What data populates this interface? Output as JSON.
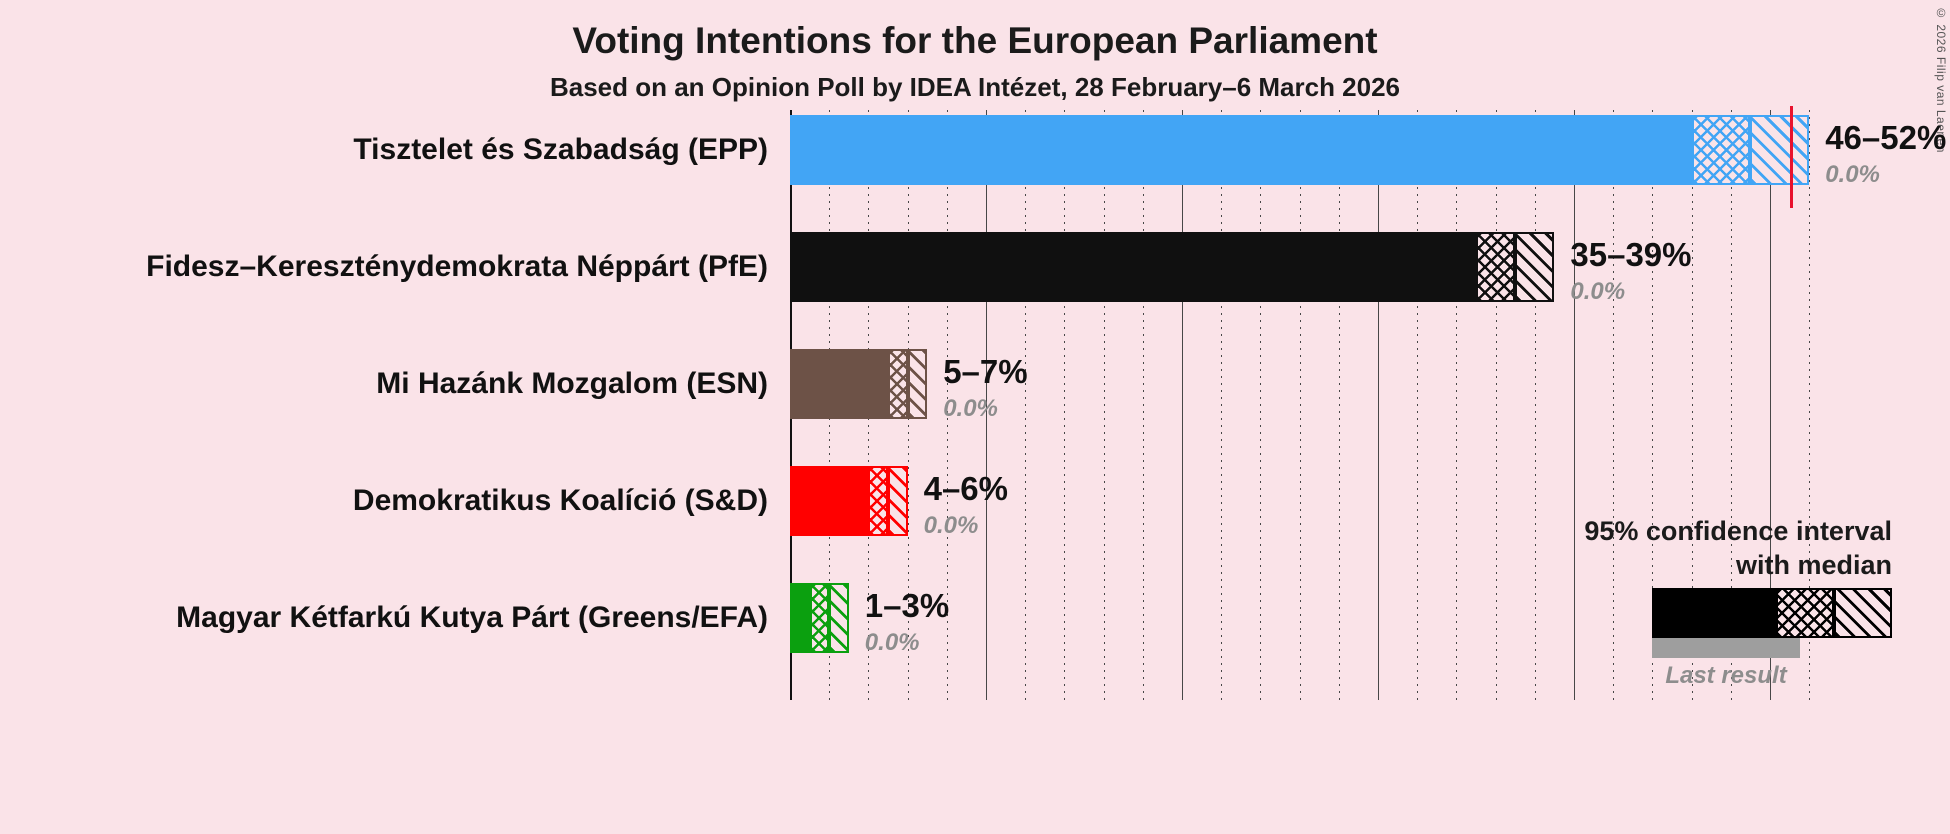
{
  "chart_data": {
    "type": "bar",
    "orientation": "horizontal",
    "title": "Voting Intentions for the European Parliament",
    "subtitle": "Based on an Opinion Poll by IDEA Intézet, 28 February–6 March 2026",
    "x_unit": "percent",
    "xlim": [
      0,
      52
    ],
    "gridlines": {
      "dotted_every_pct": 2,
      "solid_every_pct": 10
    },
    "majority_line_pct": 51,
    "parties": [
      {
        "label": "Tisztelet és Szabadság (EPP)",
        "color": "#42A5F5",
        "ci_low_pct": 46,
        "ci_median_pct": 49,
        "ci_high_pct": 52,
        "ci_label": "46–52%",
        "last_result_pct": 0.0,
        "last_result_label": "0.0%"
      },
      {
        "label": "Fidesz–Kereszténydemokrata Néppárt (PfE)",
        "color": "#101010",
        "ci_low_pct": 35,
        "ci_median_pct": 37,
        "ci_high_pct": 39,
        "ci_label": "35–39%",
        "last_result_pct": 0.0,
        "last_result_label": "0.0%"
      },
      {
        "label": "Mi Hazánk Mozgalom (ESN)",
        "color": "#6D5247",
        "ci_low_pct": 5,
        "ci_median_pct": 6,
        "ci_high_pct": 7,
        "ci_label": "5–7%",
        "last_result_pct": 0.0,
        "last_result_label": "0.0%"
      },
      {
        "label": "Demokratikus Koalíció (S&D)",
        "color": "#FF0000",
        "ci_low_pct": 4,
        "ci_median_pct": 5,
        "ci_high_pct": 6,
        "ci_label": "4–6%",
        "last_result_pct": 0.0,
        "last_result_label": "0.0%"
      },
      {
        "label": "Magyar Kétfarkú Kutya Párt (Greens/EFA)",
        "color": "#0BA00F",
        "ci_low_pct": 1,
        "ci_median_pct": 2,
        "ci_high_pct": 3,
        "ci_label": "1–3%",
        "last_result_pct": 0.0,
        "last_result_label": "0.0%"
      }
    ]
  },
  "legend": {
    "ci_line1": "95% confidence interval",
    "ci_line2": "with median",
    "last_result": "Last result"
  },
  "copyright": "© 2026 Filip van Laenen",
  "colors": {
    "background": "#FAE3E8",
    "majority_line": "#E8112D",
    "last_result_bar": "#9E9E9E",
    "grid": "#474747",
    "secondary_text": "#8D8D8D"
  }
}
